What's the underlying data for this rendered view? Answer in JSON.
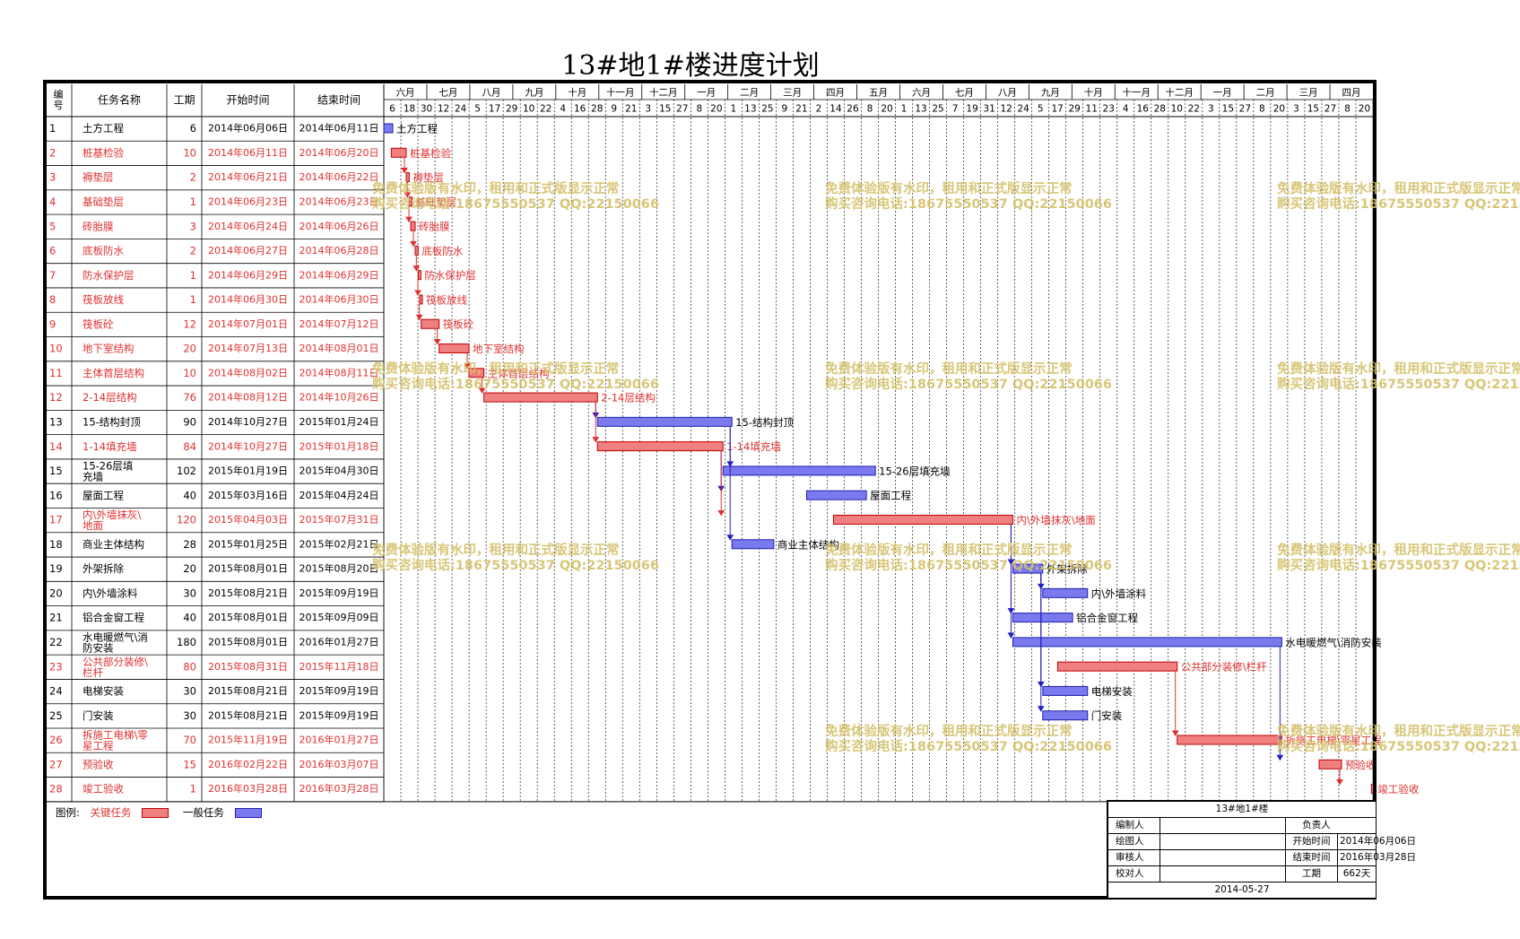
{
  "title": "13#地1#楼进度计划",
  "columns": [
    "编号",
    "任务名称",
    "工期",
    "开始时间",
    "结束时间"
  ],
  "colors": {
    "critical": "#e03030",
    "critical_fill": "#f08080",
    "normal": "#2020c0",
    "normal_fill": "#7a7aee",
    "watermark": "#d4c06a"
  },
  "month_headers": [
    "六月",
    "七月",
    "八月",
    "九月",
    "十月",
    "十一月",
    "十二月",
    "一月",
    "二月",
    "三月",
    "四月",
    "五月",
    "六月",
    "七月",
    "八月",
    "九月",
    "十月",
    "十一月",
    "十二月",
    "一月",
    "二月",
    "三月",
    "四月"
  ],
  "day_ticks": [
    "6",
    "18",
    "30",
    "12",
    "24",
    "5",
    "17",
    "29",
    "10",
    "22",
    "4",
    "16",
    "28",
    "9",
    "21",
    "3",
    "15",
    "27",
    "8",
    "20",
    "1",
    "13",
    "25",
    "9",
    "21",
    "2",
    "14",
    "26",
    "8",
    "20",
    "1",
    "13",
    "25",
    "7",
    "19",
    "31",
    "12",
    "24",
    "5",
    "17",
    "29",
    "11",
    "23",
    "4",
    "16",
    "28",
    "10",
    "22",
    "3",
    "15",
    "27",
    "8",
    "20",
    "3",
    "15",
    "27",
    "8",
    "20"
  ],
  "tasks": [
    {
      "id": "1",
      "name": "土方工程",
      "dur": "6",
      "start": "2014年06月06日",
      "end": "2014年06月11日",
      "critical": false,
      "s": 0,
      "d": 6
    },
    {
      "id": "2",
      "name": "桩基检验",
      "dur": "10",
      "start": "2014年06月11日",
      "end": "2014年06月20日",
      "critical": true,
      "s": 5,
      "d": 10
    },
    {
      "id": "3",
      "name": "褥垫层",
      "dur": "2",
      "start": "2014年06月21日",
      "end": "2014年06月22日",
      "critical": true,
      "s": 15,
      "d": 2
    },
    {
      "id": "4",
      "name": "基础垫层",
      "dur": "1",
      "start": "2014年06月23日",
      "end": "2014年06月23日",
      "critical": true,
      "s": 17,
      "d": 1
    },
    {
      "id": "5",
      "name": "砖胎膜",
      "dur": "3",
      "start": "2014年06月24日",
      "end": "2014年06月26日",
      "critical": true,
      "s": 18,
      "d": 3
    },
    {
      "id": "6",
      "name": "底板防水",
      "dur": "2",
      "start": "2014年06月27日",
      "end": "2014年06月28日",
      "critical": true,
      "s": 21,
      "d": 2
    },
    {
      "id": "7",
      "name": "防水保护层",
      "dur": "1",
      "start": "2014年06月29日",
      "end": "2014年06月29日",
      "critical": true,
      "s": 23,
      "d": 1
    },
    {
      "id": "8",
      "name": "筏板放线",
      "dur": "1",
      "start": "2014年06月30日",
      "end": "2014年06月30日",
      "critical": true,
      "s": 24,
      "d": 1
    },
    {
      "id": "9",
      "name": "筏板砼",
      "dur": "12",
      "start": "2014年07月01日",
      "end": "2014年07月12日",
      "critical": true,
      "s": 25,
      "d": 12
    },
    {
      "id": "10",
      "name": "地下室结构",
      "dur": "20",
      "start": "2014年07月13日",
      "end": "2014年08月01日",
      "critical": true,
      "s": 37,
      "d": 20
    },
    {
      "id": "11",
      "name": "主体首层结构",
      "dur": "10",
      "start": "2014年08月02日",
      "end": "2014年08月11日",
      "critical": true,
      "s": 57,
      "d": 10
    },
    {
      "id": "12",
      "name": "2-14层结构",
      "dur": "76",
      "start": "2014年08月12日",
      "end": "2014年10月26日",
      "critical": true,
      "s": 67,
      "d": 76
    },
    {
      "id": "13",
      "name": "15-结构封顶",
      "dur": "90",
      "start": "2014年10月27日",
      "end": "2015年01月24日",
      "critical": false,
      "s": 143,
      "d": 90
    },
    {
      "id": "14",
      "name": "1-14填充墙",
      "dur": "84",
      "start": "2014年10月27日",
      "end": "2015年01月18日",
      "critical": true,
      "s": 143,
      "d": 84
    },
    {
      "id": "15",
      "name": "15-26层填充墙",
      "dur": "102",
      "start": "2015年01月19日",
      "end": "2015年04月30日",
      "critical": false,
      "s": 227,
      "d": 102
    },
    {
      "id": "16",
      "name": "屋面工程",
      "dur": "40",
      "start": "2015年03月16日",
      "end": "2015年04月24日",
      "critical": false,
      "s": 283,
      "d": 40
    },
    {
      "id": "17",
      "name": "内\\外墙抹灰\\地面",
      "dur": "120",
      "start": "2015年04月03日",
      "end": "2015年07月31日",
      "critical": true,
      "s": 301,
      "d": 120
    },
    {
      "id": "18",
      "name": "商业主体结构",
      "dur": "28",
      "start": "2015年01月25日",
      "end": "2015年02月21日",
      "critical": false,
      "s": 233,
      "d": 28
    },
    {
      "id": "19",
      "name": "外架拆除",
      "dur": "20",
      "start": "2015年08月01日",
      "end": "2015年08月20日",
      "critical": false,
      "s": 421,
      "d": 20
    },
    {
      "id": "20",
      "name": "内\\外墙涂料",
      "dur": "30",
      "start": "2015年08月21日",
      "end": "2015年09月19日",
      "critical": false,
      "s": 441,
      "d": 30
    },
    {
      "id": "21",
      "name": "铝合金窗工程",
      "dur": "40",
      "start": "2015年08月01日",
      "end": "2015年09月09日",
      "critical": false,
      "s": 421,
      "d": 40
    },
    {
      "id": "22",
      "name": "水电暖燃气\\消防安装",
      "dur": "180",
      "start": "2015年08月01日",
      "end": "2016年01月27日",
      "critical": false,
      "s": 421,
      "d": 180
    },
    {
      "id": "23",
      "name": "公共部分装修\\栏杆",
      "dur": "80",
      "start": "2015年08月31日",
      "end": "2015年11月18日",
      "critical": true,
      "s": 451,
      "d": 80
    },
    {
      "id": "24",
      "name": "电梯安装",
      "dur": "30",
      "start": "2015年08月21日",
      "end": "2015年09月19日",
      "critical": false,
      "s": 441,
      "d": 30
    },
    {
      "id": "25",
      "name": "门安装",
      "dur": "30",
      "start": "2015年08月21日",
      "end": "2015年09月19日",
      "critical": false,
      "s": 441,
      "d": 30
    },
    {
      "id": "26",
      "name": "拆施工电梯\\零星工程",
      "dur": "70",
      "start": "2015年11月19日",
      "end": "2016年01月27日",
      "critical": true,
      "s": 531,
      "d": 70
    },
    {
      "id": "27",
      "name": "预验收",
      "dur": "15",
      "start": "2016年02月22日",
      "end": "2016年03月07日",
      "critical": true,
      "s": 626,
      "d": 15
    },
    {
      "id": "28",
      "name": "竣工验收",
      "dur": "1",
      "start": "2016年03月28日",
      "end": "2016年03月28日",
      "critical": true,
      "s": 661,
      "d": 1
    }
  ],
  "legend": {
    "label": "图例:",
    "critical": "关键任务",
    "normal": "一般任务"
  },
  "info": {
    "header": "13#地1#楼",
    "compiler_label": "编制人",
    "compiler": "",
    "owner_label": "负责人",
    "owner": "",
    "drawer_label": "绘图人",
    "drawer": "",
    "start_label": "开始时间",
    "start": "2014年06月06日",
    "reviewer_label": "审核人",
    "reviewer": "",
    "end_label": "结束时间",
    "end": "2016年03月28日",
    "checker_label": "校对人",
    "checker": "",
    "duration_label": "工期",
    "duration": "662天",
    "date": "2014-05-27"
  },
  "watermark": {
    "line1": "免费体验版有水印，租用和正式版显示正常",
    "line2": "购买咨询电话:18675550537 QQ:22150066"
  }
}
